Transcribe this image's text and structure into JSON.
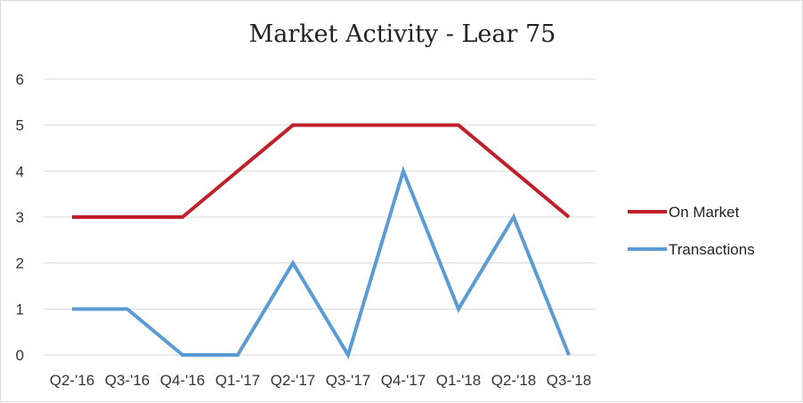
{
  "chart_data": {
    "type": "line",
    "title": "Market Activity - Lear 75",
    "xlabel": "",
    "ylabel": "",
    "categories": [
      "Q2-'16",
      "Q3-'16",
      "Q4-'16",
      "Q1-'17",
      "Q2-'17",
      "Q3-'17",
      "Q4-'17",
      "Q1-'18",
      "Q2-'18",
      "Q3-'18"
    ],
    "series": [
      {
        "name": "On Market",
        "color": "#c0202a",
        "values": [
          3,
          3,
          3,
          4,
          5,
          5,
          5,
          5,
          4,
          3
        ]
      },
      {
        "name": "Transactions",
        "color": "#5b9bd5",
        "values": [
          1,
          1,
          0,
          0,
          2,
          0,
          4,
          1,
          3,
          0
        ]
      }
    ],
    "ylim": [
      0,
      6
    ],
    "yticks": [
      0,
      1,
      2,
      3,
      4,
      5,
      6
    ],
    "grid": true,
    "legend_position": "right"
  }
}
